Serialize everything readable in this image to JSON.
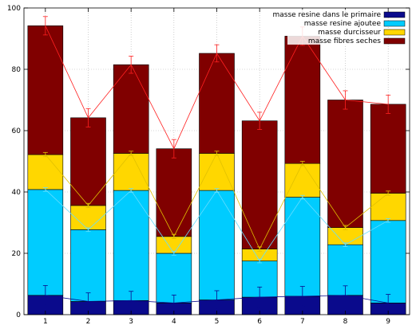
{
  "chart_data": {
    "type": "bar",
    "stacked": true,
    "categories": [
      "1",
      "2",
      "3",
      "4",
      "5",
      "6",
      "7",
      "8",
      "9"
    ],
    "ylim": [
      0,
      100
    ],
    "yticks": [
      "0",
      "20",
      "40",
      "60",
      "80",
      "100"
    ],
    "grid": true,
    "legend_position": "top-right",
    "series": [
      {
        "name": "masse resine dans le primaire",
        "color": "#0a0a8c",
        "values": [
          6.3,
          4.3,
          4.6,
          3.8,
          4.8,
          5.7,
          6.0,
          6.3,
          3.8
        ],
        "line_values": [
          6.3,
          4.3,
          4.6,
          3.8,
          4.8,
          5.7,
          6.0,
          6.3,
          3.8
        ],
        "line_color": "#0a0a8c",
        "errors": [
          3.2,
          2.8,
          3.0,
          2.6,
          3.0,
          3.3,
          3.2,
          3.1,
          2.8
        ]
      },
      {
        "name": "masse resine ajoutee",
        "color": "#00ccff",
        "values": [
          34.5,
          23.4,
          35.9,
          16.2,
          35.7,
          11.8,
          32.3,
          16.5,
          26.9
        ],
        "line_values": [
          40.8,
          27.7,
          40.5,
          20.0,
          40.5,
          17.5,
          38.3,
          22.8,
          30.7
        ],
        "line_color": "#66ddff",
        "errors": [
          0.6,
          0.6,
          0.6,
          0.6,
          0.6,
          0.6,
          0.6,
          0.6,
          0.6
        ]
      },
      {
        "name": "masse durcisseur",
        "color": "#ffd700",
        "values": [
          11.4,
          7.9,
          12.1,
          5.5,
          12.1,
          3.9,
          11.0,
          5.6,
          8.9
        ],
        "line_values": [
          52.2,
          35.6,
          52.6,
          25.5,
          52.6,
          21.4,
          49.3,
          28.4,
          39.6
        ],
        "line_color": "#e0c000",
        "errors": [
          0.7,
          0.7,
          0.7,
          0.7,
          0.7,
          0.7,
          0.7,
          0.7,
          0.7
        ]
      },
      {
        "name": "masse fibres seches",
        "color": "#800000",
        "values": [
          42.0,
          28.6,
          28.9,
          28.6,
          32.6,
          41.8,
          41.5,
          41.6,
          29.0
        ],
        "line_values": [
          94.2,
          64.2,
          81.5,
          54.1,
          85.2,
          63.2,
          90.8,
          70.0,
          68.6
        ],
        "line_color": "#ff2020",
        "errors": [
          3.0,
          3.0,
          2.8,
          3.0,
          2.8,
          2.8,
          3.0,
          3.0,
          3.0
        ]
      }
    ]
  }
}
